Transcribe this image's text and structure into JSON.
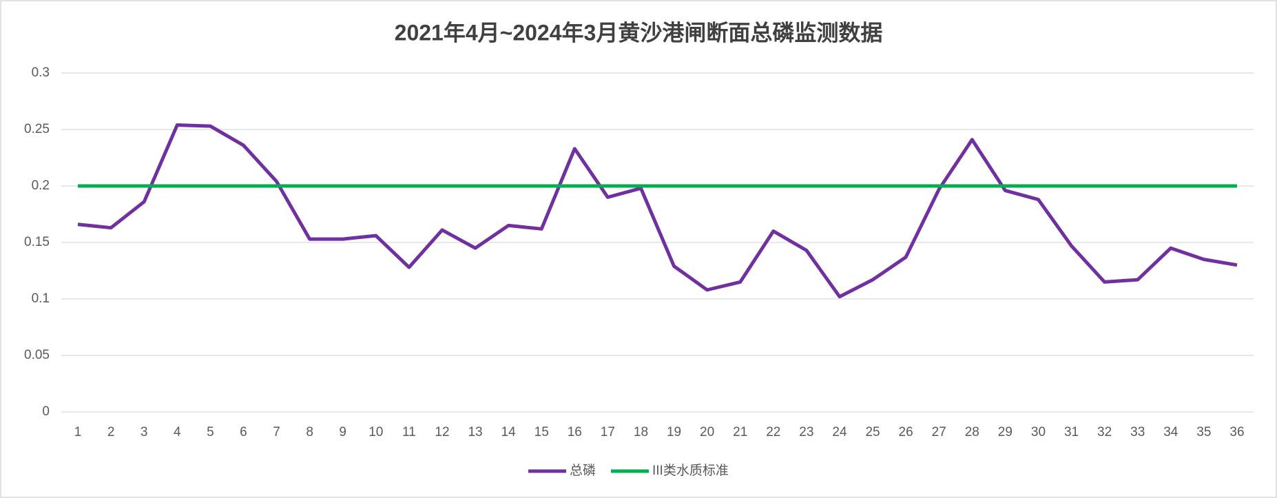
{
  "chart_data": {
    "type": "line",
    "title": "2021年4月~2024年3月黄沙港闸断面总磷监测数据",
    "categories": [
      "1",
      "2",
      "3",
      "4",
      "5",
      "6",
      "7",
      "8",
      "9",
      "10",
      "11",
      "12",
      "13",
      "14",
      "15",
      "16",
      "17",
      "18",
      "19",
      "20",
      "21",
      "22",
      "23",
      "24",
      "25",
      "26",
      "27",
      "28",
      "29",
      "30",
      "31",
      "32",
      "33",
      "34",
      "35",
      "36"
    ],
    "series": [
      {
        "name": "总磷",
        "color": "#7030a0",
        "values": [
          0.166,
          0.163,
          0.186,
          0.254,
          0.253,
          0.236,
          0.204,
          0.153,
          0.153,
          0.156,
          0.128,
          0.161,
          0.145,
          0.165,
          0.162,
          0.233,
          0.19,
          0.198,
          0.129,
          0.108,
          0.115,
          0.16,
          0.143,
          0.102,
          0.117,
          0.137,
          0.197,
          0.241,
          0.196,
          0.188,
          0.147,
          0.115,
          0.117,
          0.145,
          0.135,
          0.13
        ]
      },
      {
        "name": "III类水质标准",
        "color": "#00b050",
        "values": [
          0.2,
          0.2,
          0.2,
          0.2,
          0.2,
          0.2,
          0.2,
          0.2,
          0.2,
          0.2,
          0.2,
          0.2,
          0.2,
          0.2,
          0.2,
          0.2,
          0.2,
          0.2,
          0.2,
          0.2,
          0.2,
          0.2,
          0.2,
          0.2,
          0.2,
          0.2,
          0.2,
          0.2,
          0.2,
          0.2,
          0.2,
          0.2,
          0.2,
          0.2,
          0.2,
          0.2
        ]
      }
    ],
    "ylim": [
      0,
      0.3
    ],
    "yticks": [
      0,
      0.05,
      0.1,
      0.15,
      0.2,
      0.25,
      0.3
    ],
    "grid": true,
    "legend": "bottom"
  }
}
